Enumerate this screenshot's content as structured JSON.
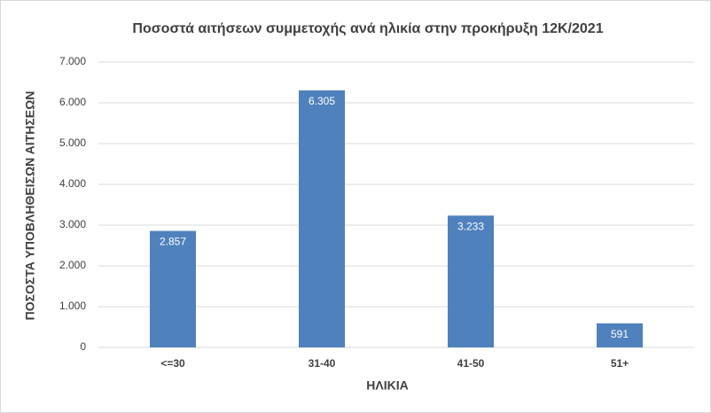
{
  "chart_data": {
    "type": "bar",
    "title": "Ποσοστά αιτήσεων συμμετοχής ανά ηλικία στην προκήρυξη 12Κ/2021",
    "x_label": "ΗΛΙΚΙΑ",
    "y_label": "ΠΟΣΟΣΤΑ ΥΠΟΒΛΗΘΕΙΣΩΝ ΑΙΤΗΣΕΩΝ",
    "categories": [
      "<=30",
      "31-40",
      "41-50",
      "51+"
    ],
    "values": [
      2857,
      6305,
      3233,
      591
    ],
    "value_labels": [
      "2.857",
      "6.305",
      "3.233",
      "591"
    ],
    "color": "#4f81bd",
    "ylim": [
      0,
      7000
    ],
    "yticks": [
      0,
      {
        "value": 1000,
        "label": "1.000"
      },
      {
        "value": 2000,
        "label": "2.000"
      },
      {
        "value": 3000,
        "label": "3.000"
      },
      {
        "value": 4000,
        "label": "4.000"
      },
      {
        "value": 5000,
        "label": "5.000"
      },
      {
        "value": 6000,
        "label": "6.000"
      },
      {
        "value": 7000,
        "label": "7.000"
      }
    ],
    "grid": true
  }
}
